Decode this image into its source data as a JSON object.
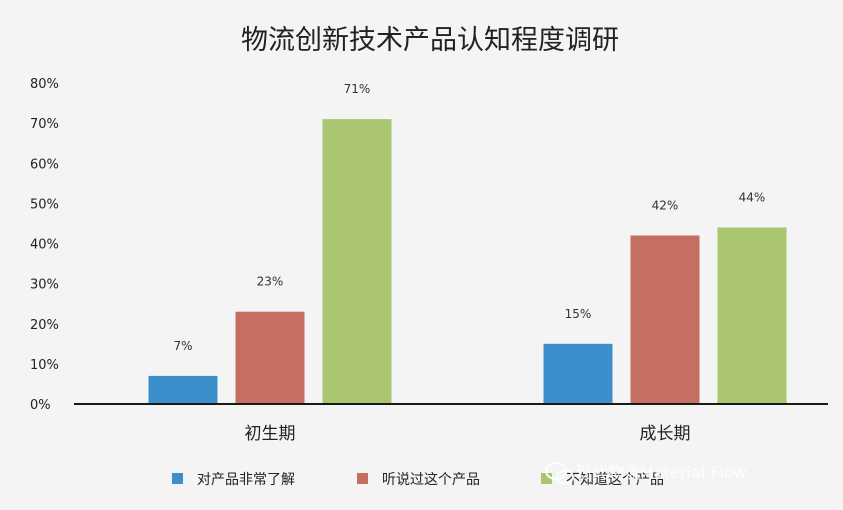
{
  "chart_data": {
    "type": "bar",
    "title": "物流创新技术产品认知程度调研",
    "categories": [
      "初生期",
      "成长期"
    ],
    "series": [
      {
        "name": "对产品非常了解",
        "color": "#3d8fcb",
        "values": [
          7,
          15
        ],
        "labels": [
          "7%",
          "15%"
        ]
      },
      {
        "name": "听说过这个产品",
        "color": "#c46f62",
        "values": [
          23,
          42
        ],
        "labels": [
          "23%",
          "42%"
        ]
      },
      {
        "name": "不知道这个产品",
        "color": "#a9c56f",
        "values": [
          71,
          44
        ],
        "labels": [
          "71%",
          "44%"
        ]
      }
    ],
    "y_ticks": [
      "0%",
      "10%",
      "20%",
      "30%",
      "40%",
      "50%",
      "60%",
      "70%",
      "80%"
    ],
    "ylim": [
      0,
      80
    ],
    "grid": false,
    "legend_position": "bottom"
  },
  "watermark": {
    "text": "现代物流Material Flow",
    "icon": "wechat-icon"
  }
}
